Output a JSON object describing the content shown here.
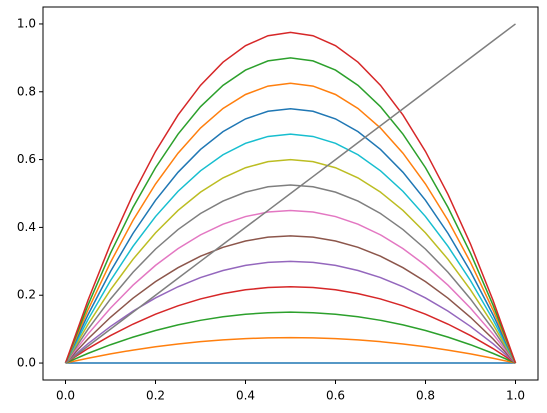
{
  "chart_data": {
    "type": "line",
    "x": [
      0,
      0.05,
      0.1,
      0.15,
      0.2,
      0.25,
      0.3,
      0.35,
      0.4,
      0.45,
      0.5,
      0.55,
      0.6,
      0.65,
      0.7,
      0.75,
      0.8,
      0.85,
      0.9,
      0.95,
      1
    ],
    "series": [
      {
        "color": "#1f77b4",
        "values": [
          0,
          0,
          0,
          0,
          0,
          0,
          0,
          0,
          0,
          0,
          0,
          0,
          0,
          0,
          0,
          0,
          0,
          0,
          0,
          0,
          0
        ]
      },
      {
        "color": "#ff7f0e",
        "values": [
          0,
          0.01425,
          0.027,
          0.03825,
          0.048,
          0.05625,
          0.063,
          0.06825,
          0.072,
          0.07425,
          0.075,
          0.07425,
          0.072,
          0.06825,
          0.063,
          0.05625,
          0.048,
          0.03825,
          0.027,
          0.01425,
          0
        ]
      },
      {
        "color": "#2ca02c",
        "values": [
          0,
          0.0285,
          0.054,
          0.0765,
          0.096,
          0.1125,
          0.126,
          0.1365,
          0.144,
          0.1485,
          0.15,
          0.1485,
          0.144,
          0.1365,
          0.126,
          0.1125,
          0.096,
          0.0765,
          0.054,
          0.0285,
          0
        ]
      },
      {
        "color": "#d62728",
        "values": [
          0,
          0.04275,
          0.081,
          0.11475,
          0.144,
          0.16875,
          0.189,
          0.20475,
          0.216,
          0.22275,
          0.225,
          0.22275,
          0.216,
          0.20475,
          0.189,
          0.16875,
          0.144,
          0.11475,
          0.081,
          0.04275,
          0
        ]
      },
      {
        "color": "#9467bd",
        "values": [
          0,
          0.057,
          0.108,
          0.153,
          0.192,
          0.225,
          0.252,
          0.273,
          0.288,
          0.297,
          0.3,
          0.297,
          0.288,
          0.273,
          0.252,
          0.225,
          0.192,
          0.153,
          0.108,
          0.057,
          0
        ]
      },
      {
        "color": "#8c564b",
        "values": [
          0,
          0.07125,
          0.135,
          0.19125,
          0.24,
          0.28125,
          0.315,
          0.34125,
          0.36,
          0.37125,
          0.375,
          0.37125,
          0.36,
          0.34125,
          0.315,
          0.28125,
          0.24,
          0.19125,
          0.135,
          0.07125,
          0
        ]
      },
      {
        "color": "#e377c2",
        "values": [
          0,
          0.0855,
          0.162,
          0.2295,
          0.288,
          0.3375,
          0.378,
          0.4095,
          0.432,
          0.4455,
          0.45,
          0.4455,
          0.432,
          0.4095,
          0.378,
          0.3375,
          0.288,
          0.2295,
          0.162,
          0.0855,
          0
        ]
      },
      {
        "color": "#7f7f7f",
        "values": [
          0,
          0.09975,
          0.189,
          0.26775,
          0.336,
          0.39375,
          0.441,
          0.47775,
          0.504,
          0.51975,
          0.525,
          0.51975,
          0.504,
          0.47775,
          0.441,
          0.39375,
          0.336,
          0.26775,
          0.189,
          0.09975,
          0
        ]
      },
      {
        "color": "#bcbd22",
        "values": [
          0,
          0.114,
          0.216,
          0.306,
          0.384,
          0.45,
          0.504,
          0.546,
          0.576,
          0.594,
          0.6,
          0.594,
          0.576,
          0.546,
          0.504,
          0.45,
          0.384,
          0.306,
          0.216,
          0.114,
          0
        ]
      },
      {
        "color": "#17becf",
        "values": [
          0,
          0.12825,
          0.243,
          0.34425,
          0.432,
          0.50625,
          0.567,
          0.61425,
          0.648,
          0.66825,
          0.675,
          0.66825,
          0.648,
          0.61425,
          0.567,
          0.50625,
          0.432,
          0.34425,
          0.243,
          0.12825,
          0
        ]
      },
      {
        "color": "#1f77b4",
        "values": [
          0,
          0.1425,
          0.27,
          0.3825,
          0.48,
          0.5625,
          0.63,
          0.6825,
          0.72,
          0.7425,
          0.75,
          0.7425,
          0.72,
          0.6825,
          0.63,
          0.5625,
          0.48,
          0.3825,
          0.27,
          0.1425,
          0
        ]
      },
      {
        "color": "#ff7f0e",
        "values": [
          0,
          0.15675,
          0.297,
          0.42075,
          0.528,
          0.61875,
          0.693,
          0.75075,
          0.792,
          0.81675,
          0.825,
          0.81675,
          0.792,
          0.75075,
          0.693,
          0.61875,
          0.528,
          0.42075,
          0.297,
          0.15675,
          0
        ]
      },
      {
        "color": "#2ca02c",
        "values": [
          0,
          0.171,
          0.324,
          0.459,
          0.576,
          0.675,
          0.756,
          0.819,
          0.864,
          0.891,
          0.9,
          0.891,
          0.864,
          0.819,
          0.756,
          0.675,
          0.576,
          0.459,
          0.324,
          0.171,
          0
        ]
      },
      {
        "color": "#d62728",
        "values": [
          0,
          0.18525,
          0.351,
          0.49725,
          0.624,
          0.73125,
          0.819,
          0.88725,
          0.936,
          0.96525,
          0.975,
          0.96525,
          0.936,
          0.88725,
          0.819,
          0.73125,
          0.624,
          0.49725,
          0.351,
          0.18525,
          0
        ]
      },
      {
        "color": "#7f7f7f",
        "values": [
          0,
          0.05,
          0.1,
          0.15,
          0.2,
          0.25,
          0.3,
          0.35,
          0.4,
          0.45,
          0.5,
          0.55,
          0.6,
          0.65,
          0.7,
          0.75,
          0.8,
          0.85,
          0.9,
          0.95,
          1
        ]
      }
    ],
    "xlim": [
      -0.05,
      1.05
    ],
    "ylim": [
      -0.05,
      1.05
    ],
    "xticks": [
      {
        "value": 0,
        "label": "0.0"
      },
      0.2,
      0.4,
      0.6,
      0.8,
      {
        "value": 1,
        "label": "1.0"
      }
    ],
    "yticks": [
      {
        "value": 0,
        "label": "0.0"
      },
      0.2,
      0.4,
      0.6,
      0.8,
      {
        "value": 1,
        "label": "1.0"
      }
    ]
  }
}
